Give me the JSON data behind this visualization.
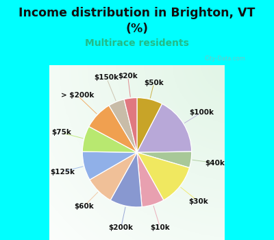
{
  "title_line1": "Income distribution in Brighton, VT",
  "title_line2": "(%)",
  "subtitle": "Multirace residents",
  "subtitle_color": "#22bb88",
  "bg_color": "#00ffff",
  "labels": [
    "$50k",
    "$100k",
    "$40k",
    "$30k",
    "$10k",
    "$200k",
    "$60k",
    "$125k",
    "$75k",
    "> $200k",
    "$150k",
    "$20k"
  ],
  "values": [
    8,
    18,
    5,
    13,
    7,
    10,
    9,
    9,
    8,
    9,
    5,
    4
  ],
  "colors": [
    "#c8a428",
    "#b8a8d8",
    "#a8c898",
    "#f0e860",
    "#e8a0b0",
    "#8898d0",
    "#f0c098",
    "#90b0e8",
    "#b8e870",
    "#f0a050",
    "#c8bca8",
    "#e07880"
  ],
  "chart_bg_gradient": [
    "#e8f8f0",
    "#f8fffb"
  ],
  "watermark": "City-Data.com",
  "label_fontsize": 7.5,
  "title_fontsize": 12.5,
  "subtitle_fontsize": 10
}
